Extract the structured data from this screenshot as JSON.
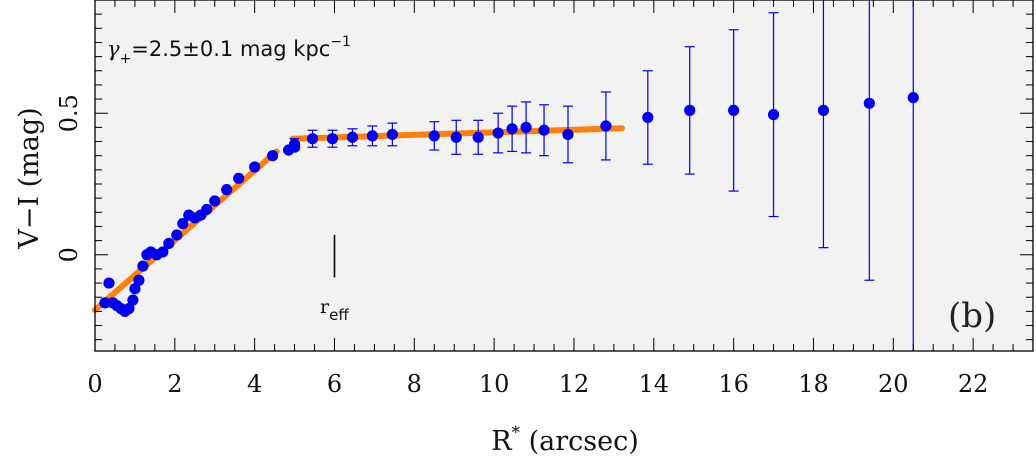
{
  "chart_data": {
    "type": "scatter",
    "xlabel_main": "R",
    "xlabel_sup": "*",
    "xlabel_rest": " (arcsec)",
    "ylabel": "V−I (mag)",
    "xlim": [
      0,
      23.5
    ],
    "ylim": [
      -0.34,
      0.9
    ],
    "grid": false,
    "x_ticks": [
      0,
      2,
      4,
      6,
      8,
      10,
      12,
      14,
      16,
      18,
      20,
      22
    ],
    "y_ticks": [
      0,
      0.5
    ],
    "y_tick_labels": [
      "0",
      "0.5"
    ],
    "annotation": {
      "gamma_symbol": "γ",
      "gamma_sub": "+",
      "gamma_text": "=2.5±0.1 mag kpc",
      "gamma_sup": "−1",
      "panel_label": "(b)",
      "reff_main": "r",
      "reff_sub": "eff",
      "reff_x": 6.0,
      "reff_marker_y": [
        -0.08,
        0.07
      ]
    },
    "colors": {
      "points": "#0000ee",
      "fit": "#ff7f0e",
      "background": "#f2f2f2",
      "reff_marker": "#000000"
    },
    "series": [
      {
        "points": [
          {
            "x": 0.25,
            "y": -0.17
          },
          {
            "x": 0.35,
            "y": -0.1
          },
          {
            "x": 0.45,
            "y": -0.17
          },
          {
            "x": 0.55,
            "y": -0.18
          },
          {
            "x": 0.65,
            "y": -0.19
          },
          {
            "x": 0.75,
            "y": -0.2
          },
          {
            "x": 0.85,
            "y": -0.19
          },
          {
            "x": 0.95,
            "y": -0.16
          },
          {
            "x": 1.0,
            "y": -0.12
          },
          {
            "x": 1.1,
            "y": -0.09
          },
          {
            "x": 1.2,
            "y": -0.04
          },
          {
            "x": 1.3,
            "y": 0.0
          },
          {
            "x": 1.4,
            "y": 0.01
          },
          {
            "x": 1.55,
            "y": 0.0
          },
          {
            "x": 1.7,
            "y": 0.01
          },
          {
            "x": 1.85,
            "y": 0.04
          },
          {
            "x": 2.05,
            "y": 0.07
          },
          {
            "x": 2.2,
            "y": 0.11
          },
          {
            "x": 2.35,
            "y": 0.14
          },
          {
            "x": 2.5,
            "y": 0.13
          },
          {
            "x": 2.65,
            "y": 0.14
          },
          {
            "x": 2.8,
            "y": 0.16
          },
          {
            "x": 3.0,
            "y": 0.19
          },
          {
            "x": 3.3,
            "y": 0.23
          },
          {
            "x": 3.6,
            "y": 0.27
          },
          {
            "x": 4.0,
            "y": 0.31
          },
          {
            "x": 4.45,
            "y": 0.35
          },
          {
            "x": 4.85,
            "y": 0.37
          },
          {
            "x": 5.0,
            "y": 0.38
          }
        ],
        "errors": [
          {
            "x": 5.0,
            "y": 0.39,
            "err": 0.02
          },
          {
            "x": 5.45,
            "y": 0.41,
            "err": 0.03
          },
          {
            "x": 5.95,
            "y": 0.41,
            "err": 0.03
          },
          {
            "x": 6.45,
            "y": 0.415,
            "err": 0.03
          },
          {
            "x": 6.95,
            "y": 0.42,
            "err": 0.035
          },
          {
            "x": 7.45,
            "y": 0.425,
            "err": 0.04
          },
          {
            "x": 8.5,
            "y": 0.42,
            "err": 0.05
          },
          {
            "x": 9.05,
            "y": 0.415,
            "err": 0.06
          },
          {
            "x": 9.6,
            "y": 0.415,
            "err": 0.06
          },
          {
            "x": 10.1,
            "y": 0.43,
            "err": 0.07
          },
          {
            "x": 10.45,
            "y": 0.445,
            "err": 0.08
          },
          {
            "x": 10.8,
            "y": 0.45,
            "err": 0.09
          },
          {
            "x": 11.25,
            "y": 0.44,
            "err": 0.09
          },
          {
            "x": 11.85,
            "y": 0.425,
            "err": 0.1
          },
          {
            "x": 12.8,
            "y": 0.455,
            "err": 0.12
          },
          {
            "x": 13.85,
            "y": 0.485,
            "err": 0.165
          },
          {
            "x": 14.9,
            "y": 0.51,
            "err": 0.225
          },
          {
            "x": 16.0,
            "y": 0.51,
            "err": 0.285
          },
          {
            "x": 17.0,
            "y": 0.495,
            "err": 0.36
          },
          {
            "x": 18.25,
            "y": 0.51,
            "err": 0.485
          },
          {
            "x": 19.4,
            "y": 0.535,
            "err": 0.625
          },
          {
            "x": 20.5,
            "y": 0.555,
            "err": 0.95
          }
        ]
      }
    ],
    "fit_lines": [
      {
        "x": [
          0.0,
          4.55
        ],
        "y": [
          -0.195,
          0.365
        ]
      },
      {
        "x": [
          4.95,
          13.2
        ],
        "y": [
          0.41,
          0.447
        ]
      }
    ]
  }
}
